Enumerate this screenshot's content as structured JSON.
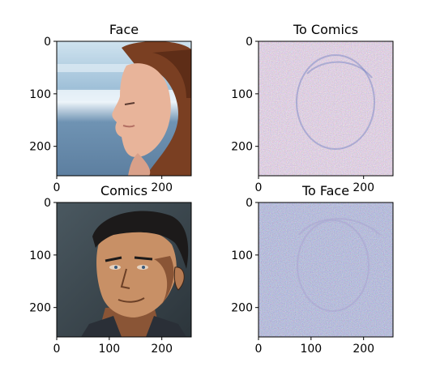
{
  "chart_data": [
    {
      "type": "image",
      "title": "Face",
      "image_size": [
        256,
        256
      ],
      "xticks": [
        0,
        200
      ],
      "yticks": [
        0,
        100,
        200
      ],
      "content": "photo of a woman's face in profile against a beach/sea background",
      "palette": {
        "sky": "#bcd9ea",
        "sea": "#6f93b3",
        "foam": "#eef5fa",
        "skin": "#e8b49a",
        "hair": "#7a3f22"
      }
    },
    {
      "type": "image",
      "title": "To Comics",
      "image_size": [
        256,
        256
      ],
      "xticks": [
        0,
        200
      ],
      "yticks": [
        0,
        100,
        200
      ],
      "content": "noisy generated image with faint face outline",
      "palette": {
        "base": "#b79aa6",
        "noise_a": "#e0a3c0",
        "noise_b": "#8fa7c0",
        "outline": "#6f7fc0"
      }
    },
    {
      "type": "image",
      "title": "Comics",
      "image_size": [
        256,
        256
      ],
      "xticks": [
        0,
        100,
        200
      ],
      "yticks": [
        0,
        100,
        200
      ],
      "content": "comic-style drawing of a man with slicked back dark hair",
      "palette": {
        "background": "#3c4850",
        "skin": "#c89066",
        "shadow": "#8a5536",
        "hair": "#1c1a1a",
        "collar": "#2a2f37"
      }
    },
    {
      "type": "image",
      "title": "To Face",
      "image_size": [
        256,
        256
      ],
      "xticks": [
        0,
        100,
        200
      ],
      "yticks": [
        0,
        100,
        200
      ],
      "content": "noisy generated image with faint face outline",
      "palette": {
        "base": "#7079b0",
        "noise_a": "#9aa0d8",
        "noise_b": "#5f6aa0",
        "outline": "#a7a2cf"
      }
    }
  ]
}
